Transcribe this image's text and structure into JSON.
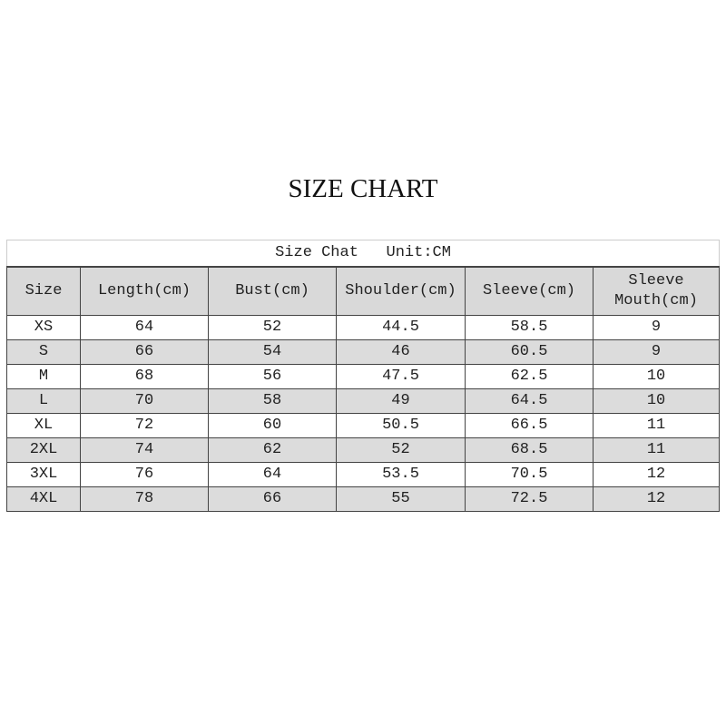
{
  "title": "SIZE CHART",
  "caption": "Size Chat   Unit:CM",
  "headers": [
    "Size",
    "Length(cm)",
    "Bust(cm)",
    "Shoulder(cm)",
    "Sleeve(cm)",
    "Sleeve Mouth(cm)"
  ],
  "rows": [
    [
      "XS",
      "64",
      "52",
      "44.5",
      "58.5",
      "9"
    ],
    [
      "S",
      "66",
      "54",
      "46",
      "60.5",
      "9"
    ],
    [
      "M",
      "68",
      "56",
      "47.5",
      "62.5",
      "10"
    ],
    [
      "L",
      "70",
      "58",
      "49",
      "64.5",
      "10"
    ],
    [
      "XL",
      "72",
      "60",
      "50.5",
      "66.5",
      "11"
    ],
    [
      "2XL",
      "74",
      "62",
      "52",
      "68.5",
      "11"
    ],
    [
      "3XL",
      "76",
      "64",
      "53.5",
      "70.5",
      "12"
    ],
    [
      "4XL",
      "78",
      "66",
      "55",
      "72.5",
      "12"
    ]
  ]
}
